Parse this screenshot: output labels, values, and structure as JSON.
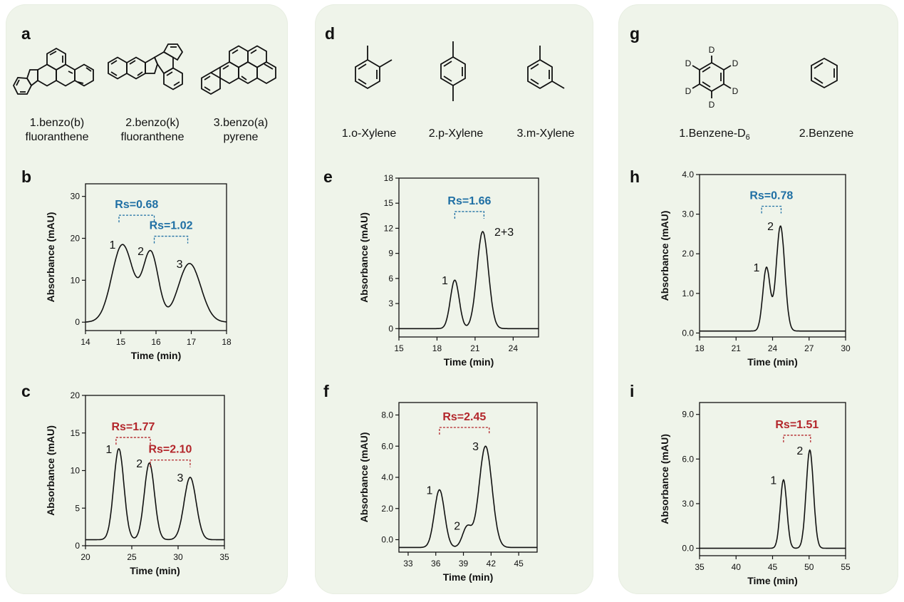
{
  "columns": [
    {
      "compounds": {
        "letter": "a",
        "names": [
          {
            "line1": "1.benzo(b)",
            "line2": "fluoranthene"
          },
          {
            "line1": "2.benzo(k)",
            "line2": "fluoranthene"
          },
          {
            "line1": "3.benzo(a)",
            "line2": "pyrene"
          }
        ]
      }
    },
    {
      "compounds": {
        "letter": "d",
        "names": [
          {
            "line1": "1.o-Xylene",
            "line2": ""
          },
          {
            "line1": "2.p-Xylene",
            "line2": ""
          },
          {
            "line1": "3.m-Xylene",
            "line2": ""
          }
        ]
      }
    },
    {
      "compounds": {
        "letter": "g",
        "names": [
          {
            "line1": "1.Benzene-D",
            "sub": "6",
            "line2": ""
          },
          {
            "line1": "2.Benzene",
            "line2": ""
          }
        ],
        "deuterium_label": "D"
      }
    }
  ],
  "colors": {
    "blue": "#1f6fa4",
    "red": "#b3262b",
    "line": "#111111",
    "panel_bg": "#eff4ea"
  },
  "chart_data": [
    {
      "id": "b",
      "type": "line",
      "letter": "b",
      "xlabel": "Time (min)",
      "ylabel": "Absorbance (mAU)",
      "xlim": [
        14,
        18
      ],
      "ylim": [
        -2,
        33
      ],
      "xticks": [
        "14",
        "15",
        "16",
        "17",
        "18"
      ],
      "xtick_values": [
        14,
        15,
        16,
        17,
        18
      ],
      "yticks": [
        "0",
        "10",
        "20",
        "30"
      ],
      "ytick_values": [
        0,
        10,
        20,
        30
      ],
      "baseline": 0,
      "peaks": [
        {
          "label": "1",
          "t": 15.05,
          "h": 18.5,
          "w": 0.3
        },
        {
          "label": "2",
          "t": 15.85,
          "h": 16.5,
          "w": 0.22
        },
        {
          "label": "3",
          "t": 16.95,
          "h": 14.0,
          "w": 0.32
        }
      ],
      "rs": [
        {
          "text": "Rs=0.68",
          "from": 14.95,
          "to": 15.95,
          "y": 25.5,
          "color": "blue"
        },
        {
          "text": "Rs=1.02",
          "from": 15.95,
          "to": 16.9,
          "y": 20.5,
          "color": "blue"
        }
      ]
    },
    {
      "id": "c",
      "type": "line",
      "letter": "c",
      "xlabel": "Time (min)",
      "ylabel": "Absorbance (mAU)",
      "xlim": [
        20,
        35
      ],
      "ylim": [
        0,
        20
      ],
      "xticks": [
        "20",
        "25",
        "30",
        "35"
      ],
      "xtick_values": [
        20,
        25,
        30,
        35
      ],
      "yticks": [
        "0",
        "5",
        "10",
        "15",
        "20"
      ],
      "ytick_values": [
        0,
        5,
        10,
        15,
        20
      ],
      "baseline": 0.8,
      "peaks": [
        {
          "label": "1",
          "t": 23.6,
          "h": 12.1,
          "w": 0.55
        },
        {
          "label": "2",
          "t": 26.9,
          "h": 10.2,
          "w": 0.55
        },
        {
          "label": "3",
          "t": 31.3,
          "h": 8.3,
          "w": 0.65
        }
      ],
      "rs": [
        {
          "text": "Rs=1.77",
          "from": 23.3,
          "to": 27.0,
          "y": 14.4,
          "color": "red"
        },
        {
          "text": "Rs=2.10",
          "from": 27.0,
          "to": 31.3,
          "y": 11.4,
          "color": "red"
        }
      ]
    },
    {
      "id": "e",
      "type": "line",
      "letter": "e",
      "xlabel": "Time (min)",
      "ylabel": "Absorbance (mAU)",
      "xlim": [
        15,
        26
      ],
      "ylim": [
        -1,
        18
      ],
      "xticks": [
        "15",
        "18",
        "21",
        "24"
      ],
      "xtick_values": [
        15,
        18,
        21,
        24
      ],
      "yticks": [
        "0",
        "3",
        "6",
        "9",
        "12",
        "15",
        "18"
      ],
      "ytick_values": [
        0,
        3,
        6,
        9,
        12,
        15,
        18
      ],
      "baseline": 0,
      "peaks": [
        {
          "label": "1",
          "t": 19.4,
          "h": 5.8,
          "w": 0.35
        },
        {
          "label": "2+3",
          "t": 21.6,
          "h": 11.6,
          "w": 0.45
        }
      ],
      "rs": [
        {
          "text": "Rs=1.66",
          "from": 19.4,
          "to": 21.7,
          "y": 14.0,
          "color": "blue"
        }
      ]
    },
    {
      "id": "f",
      "type": "line",
      "letter": "f",
      "xlabel": "Time (min)",
      "ylabel": "Absorbance (mAU)",
      "xlim": [
        32,
        47
      ],
      "ylim": [
        -0.8,
        8.8
      ],
      "xticks": [
        "33",
        "36",
        "39",
        "42",
        "45"
      ],
      "xtick_values": [
        33,
        36,
        39,
        42,
        45
      ],
      "yticks": [
        "0.0",
        "2.0",
        "4.0",
        "6.0",
        "8.0"
      ],
      "ytick_values": [
        0,
        2,
        4,
        6,
        8
      ],
      "baseline": -0.5,
      "peaks": [
        {
          "label": "1",
          "t": 36.4,
          "h": 3.7,
          "w": 0.55
        },
        {
          "label": "2",
          "t": 39.4,
          "h": 1.3,
          "w": 0.5
        },
        {
          "label": "3",
          "t": 41.4,
          "h": 6.5,
          "w": 0.7
        }
      ],
      "rs": [
        {
          "text": "Rs=2.45",
          "from": 36.4,
          "to": 41.8,
          "y": 7.2,
          "color": "red"
        }
      ]
    },
    {
      "id": "h",
      "type": "line",
      "letter": "h",
      "xlabel": "Time (min)",
      "ylabel": "Absorbance (mAU)",
      "xlim": [
        18,
        30
      ],
      "ylim": [
        -0.1,
        4.0
      ],
      "xticks": [
        "18",
        "21",
        "24",
        "27",
        "30"
      ],
      "xtick_values": [
        18,
        21,
        24,
        27,
        30
      ],
      "yticks": [
        "0.0",
        "1.0",
        "2.0",
        "3.0",
        "4.0"
      ],
      "ytick_values": [
        0,
        1,
        2,
        3,
        4
      ],
      "baseline": 0.05,
      "peaks": [
        {
          "label": "1",
          "t": 23.5,
          "h": 1.6,
          "w": 0.3
        },
        {
          "label": "2",
          "t": 24.65,
          "h": 2.65,
          "w": 0.35
        }
      ],
      "rs": [
        {
          "text": "Rs=0.78",
          "from": 23.1,
          "to": 24.7,
          "y": 3.2,
          "color": "blue"
        }
      ]
    },
    {
      "id": "i",
      "type": "line",
      "letter": "i",
      "xlabel": "Time (min)",
      "ylabel": "Absorbance (mAU)",
      "xlim": [
        35,
        55
      ],
      "ylim": [
        -0.5,
        9.8
      ],
      "xticks": [
        "35",
        "40",
        "45",
        "50",
        "55"
      ],
      "xtick_values": [
        35,
        40,
        45,
        50,
        55
      ],
      "yticks": [
        "0.0",
        "3.0",
        "6.0",
        "9.0"
      ],
      "ytick_values": [
        0,
        3,
        6,
        9
      ],
      "baseline": 0,
      "peaks": [
        {
          "label": "1",
          "t": 46.5,
          "h": 4.6,
          "w": 0.45
        },
        {
          "label": "2",
          "t": 50.1,
          "h": 6.6,
          "w": 0.5
        }
      ],
      "rs": [
        {
          "text": "Rs=1.51",
          "from": 46.5,
          "to": 50.2,
          "y": 7.6,
          "color": "red"
        }
      ]
    }
  ]
}
